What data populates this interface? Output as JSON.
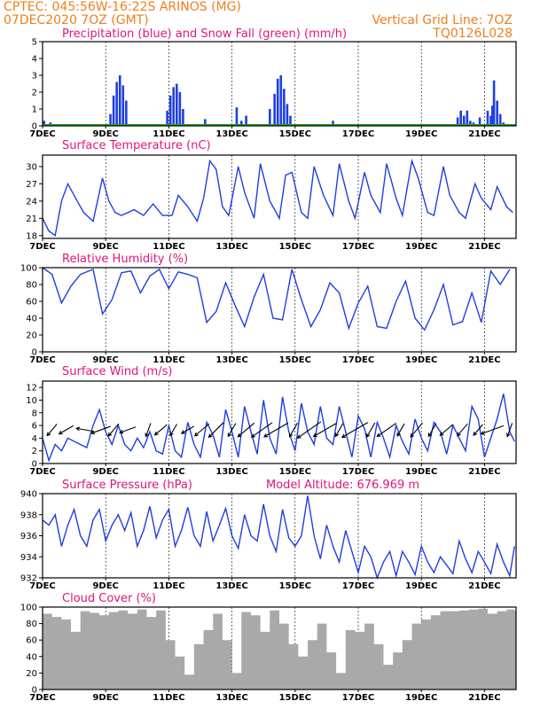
{
  "header": {
    "line1": "CPTEC:   045:56W-16:22S   ARINOS (MG)",
    "line2": "07DEC2020 7OZ (GMT)",
    "grid_note": "Vertical Grid Line: 7OZ",
    "code": "TQ0126L028"
  },
  "x_ticks": [
    "7DEC",
    "9DEC",
    "11DEC",
    "13DEC",
    "15DEC",
    "17DEC",
    "19DEC",
    "21DEC"
  ],
  "colors": {
    "header": "#ef7f1a",
    "title": "#e0157a",
    "line": "#1f3fe0",
    "precip": "#1f3fe0",
    "snow": "#1fa01f",
    "cloud": "#a9a9a9"
  },
  "chart_data": [
    {
      "type": "bar",
      "title": "Precipitation (blue) and Snow Fall (green) (mm/h)",
      "ylim": [
        0,
        5
      ],
      "y_ticks": [
        "0",
        "1",
        "2",
        "3",
        "4",
        "5"
      ],
      "x_days": [
        0.05,
        0.25,
        2.15,
        2.25,
        2.35,
        2.45,
        2.55,
        2.65,
        3.95,
        4.05,
        4.15,
        4.25,
        4.35,
        4.45,
        5.15,
        6.15,
        6.3,
        6.45,
        7.2,
        7.35,
        7.45,
        7.55,
        7.65,
        7.75,
        7.85,
        9.2,
        13.15,
        13.25,
        13.35,
        13.45,
        13.55,
        13.65,
        13.85,
        14.1,
        14.2,
        14.25,
        14.3,
        14.4,
        14.5,
        14.6
      ],
      "values": [
        0.3,
        0.2,
        0.7,
        1.8,
        2.6,
        3.0,
        2.4,
        1.5,
        0.9,
        1.8,
        2.3,
        2.5,
        2.0,
        1.0,
        0.4,
        1.1,
        0.3,
        0.6,
        1.0,
        1.9,
        2.8,
        3.0,
        2.2,
        1.3,
        0.6,
        0.3,
        0.5,
        0.9,
        0.6,
        0.9,
        0.3,
        0.2,
        0.5,
        0.9,
        0.6,
        1.2,
        2.7,
        1.5,
        0.7,
        0.2
      ]
    },
    {
      "type": "line",
      "title": "Surface Temperature (nC)",
      "ylim": [
        17.5,
        32
      ],
      "y_ticks": [
        "18",
        "21",
        "24",
        "27",
        "30"
      ],
      "x_days": [
        0,
        0.2,
        0.4,
        0.6,
        0.8,
        1.0,
        1.3,
        1.6,
        1.9,
        2.1,
        2.3,
        2.5,
        2.9,
        3.2,
        3.5,
        3.8,
        4.1,
        4.3,
        4.6,
        4.9,
        5.1,
        5.3,
        5.5,
        5.7,
        5.9,
        6.2,
        6.4,
        6.7,
        6.9,
        7.2,
        7.5,
        7.7,
        7.9,
        8.2,
        8.4,
        8.6,
        8.9,
        9.2,
        9.4,
        9.7,
        9.9,
        10.2,
        10.4,
        10.7,
        10.9,
        11.2,
        11.4,
        11.7,
        11.9,
        12.2,
        12.4,
        12.7,
        12.9,
        13.2,
        13.4,
        13.7,
        13.9,
        14.2,
        14.4,
        14.7,
        14.9
      ],
      "values": [
        21,
        18.8,
        18,
        24,
        27,
        25,
        22,
        20.5,
        28,
        24,
        22,
        21.5,
        22.5,
        21.5,
        23.5,
        21.5,
        21.5,
        25,
        23,
        20.5,
        24.5,
        31,
        29.5,
        23,
        21.5,
        30,
        25.5,
        21,
        30.5,
        24,
        21,
        28.5,
        29,
        22,
        21,
        30,
        25,
        21.5,
        30.5,
        24,
        21,
        29,
        25,
        22,
        30.5,
        24.5,
        21.5,
        31,
        28,
        22,
        21.5,
        30,
        25,
        22,
        21,
        27,
        24.5,
        22.5,
        26.5,
        23,
        22
      ]
    },
    {
      "type": "line",
      "title": "Relative Humidity (%)",
      "ylim": [
        0,
        100
      ],
      "y_ticks": [
        "0",
        "20",
        "40",
        "60",
        "80",
        "100"
      ],
      "x_days": [
        0,
        0.3,
        0.6,
        0.9,
        1.2,
        1.6,
        1.9,
        2.2,
        2.5,
        2.8,
        3.1,
        3.4,
        3.7,
        4.0,
        4.3,
        4.6,
        4.9,
        5.2,
        5.5,
        5.8,
        6.1,
        6.4,
        6.7,
        7.0,
        7.3,
        7.6,
        7.9,
        8.2,
        8.5,
        8.8,
        9.1,
        9.4,
        9.7,
        10.0,
        10.3,
        10.6,
        10.9,
        11.2,
        11.5,
        11.8,
        12.1,
        12.4,
        12.7,
        13.0,
        13.3,
        13.6,
        13.9,
        14.2,
        14.5,
        14.8
      ],
      "values": [
        100,
        92,
        58,
        78,
        92,
        98,
        45,
        62,
        94,
        96,
        70,
        90,
        98,
        75,
        95,
        92,
        88,
        35,
        48,
        82,
        55,
        30,
        65,
        92,
        40,
        38,
        98,
        62,
        30,
        50,
        82,
        70,
        28,
        58,
        78,
        30,
        28,
        60,
        84,
        40,
        26,
        50,
        80,
        32,
        36,
        70,
        35,
        96,
        80,
        98
      ]
    },
    {
      "type": "line",
      "title": "Surface Wind (m/s)",
      "ylim": [
        0,
        13
      ],
      "y_ticks": [
        "0",
        "2",
        "4",
        "6",
        "8",
        "10",
        "12"
      ],
      "x_days": [
        0,
        0.2,
        0.4,
        0.6,
        0.8,
        1.0,
        1.2,
        1.4,
        1.6,
        1.8,
        2.0,
        2.2,
        2.4,
        2.6,
        2.8,
        3.0,
        3.2,
        3.4,
        3.6,
        3.8,
        4.0,
        4.2,
        4.4,
        4.6,
        4.8,
        5.0,
        5.2,
        5.4,
        5.6,
        5.8,
        6.0,
        6.2,
        6.4,
        6.6,
        6.8,
        7.0,
        7.2,
        7.4,
        7.6,
        7.8,
        8.0,
        8.2,
        8.4,
        8.6,
        8.8,
        9.0,
        9.2,
        9.4,
        9.6,
        9.8,
        10.0,
        10.2,
        10.4,
        10.6,
        10.8,
        11.0,
        11.2,
        11.4,
        11.6,
        11.8,
        12.0,
        12.2,
        12.4,
        12.6,
        12.8,
        13.0,
        13.2,
        13.4,
        13.6,
        13.8,
        14.0,
        14.2,
        14.4,
        14.6,
        14.8,
        14.95
      ],
      "values": [
        4,
        0.5,
        3,
        2,
        4,
        3.5,
        3,
        2.5,
        6,
        8.5,
        5,
        3,
        6,
        3,
        2,
        4,
        2.5,
        5,
        2,
        1.5,
        6,
        2,
        1,
        6.5,
        3,
        1,
        6.5,
        4.5,
        1,
        8.5,
        5,
        1,
        9,
        5,
        1.5,
        10,
        4,
        1.5,
        10.5,
        5,
        2,
        9.5,
        5,
        3,
        9,
        4,
        3,
        9,
        5,
        1,
        7.5,
        5.5,
        1,
        6.5,
        4,
        1,
        6,
        3.5,
        1.5,
        7,
        4,
        2,
        6.5,
        5,
        1.5,
        6,
        4,
        2,
        9,
        7,
        1,
        4,
        7,
        11,
        5,
        3.5
      ]
    },
    {
      "type": "line",
      "title": "Surface Pressure (hPa)",
      "subtitle": "Model Altitude: 676.969 m",
      "ylim": [
        932,
        940
      ],
      "y_ticks": [
        "932",
        "934",
        "936",
        "938",
        "940"
      ],
      "x_days": [
        0,
        0.2,
        0.4,
        0.6,
        0.8,
        1.0,
        1.2,
        1.4,
        1.6,
        1.8,
        2.0,
        2.2,
        2.4,
        2.6,
        2.8,
        3.0,
        3.2,
        3.4,
        3.6,
        3.8,
        4.0,
        4.2,
        4.4,
        4.6,
        4.8,
        5.0,
        5.2,
        5.4,
        5.6,
        5.8,
        6.0,
        6.2,
        6.4,
        6.6,
        6.8,
        7.0,
        7.2,
        7.4,
        7.6,
        7.8,
        8.0,
        8.2,
        8.4,
        8.6,
        8.8,
        9.0,
        9.2,
        9.4,
        9.6,
        9.8,
        10.0,
        10.2,
        10.4,
        10.6,
        10.8,
        11.0,
        11.2,
        11.4,
        11.6,
        11.8,
        12.0,
        12.2,
        12.4,
        12.6,
        12.8,
        13.0,
        13.2,
        13.4,
        13.6,
        13.8,
        14.0,
        14.2,
        14.4,
        14.6,
        14.8,
        14.95
      ],
      "values": [
        937.5,
        937,
        938,
        935,
        937,
        938.5,
        936,
        935,
        937.5,
        938.5,
        935.5,
        937,
        938,
        936.5,
        938.2,
        935,
        936.5,
        938.8,
        935.8,
        937.5,
        938.5,
        935,
        936.5,
        938.7,
        936,
        935,
        938.3,
        935.5,
        937,
        938.6,
        936,
        934.8,
        938,
        936,
        935.5,
        939,
        936,
        934.5,
        938.5,
        935.8,
        935,
        936,
        939.8,
        936,
        933.8,
        937,
        935,
        933.5,
        936.5,
        934.5,
        932.5,
        935,
        934,
        932,
        933.5,
        934.5,
        932.2,
        934.5,
        933.5,
        932.3,
        935,
        933.5,
        932.5,
        934,
        933.2,
        932.4,
        935.5,
        933.8,
        932.5,
        934.5,
        933.5,
        932.4,
        935.2,
        933.5,
        932.2,
        935
      ]
    },
    {
      "type": "area",
      "title": "Cloud Cover (%)",
      "ylim": [
        0,
        100
      ],
      "y_ticks": [
        "0",
        "20",
        "40",
        "60",
        "80",
        "100"
      ],
      "x_days": [
        0,
        0.3,
        0.6,
        0.9,
        1.2,
        1.5,
        1.8,
        2.1,
        2.4,
        2.7,
        3.0,
        3.3,
        3.6,
        3.9,
        4.2,
        4.5,
        4.8,
        5.1,
        5.4,
        5.7,
        6.0,
        6.3,
        6.6,
        6.9,
        7.2,
        7.5,
        7.8,
        8.1,
        8.4,
        8.7,
        9.0,
        9.3,
        9.6,
        9.9,
        10.2,
        10.5,
        10.8,
        11.1,
        11.4,
        11.7,
        12.0,
        12.3,
        12.6,
        12.9,
        13.2,
        13.5,
        13.8,
        14.1,
        14.4,
        14.7,
        14.95
      ],
      "values": [
        92,
        88,
        85,
        70,
        95,
        93,
        90,
        94,
        96,
        92,
        97,
        88,
        96,
        60,
        40,
        18,
        55,
        72,
        92,
        60,
        20,
        94,
        90,
        70,
        96,
        80,
        55,
        40,
        60,
        80,
        45,
        20,
        72,
        70,
        80,
        55,
        30,
        45,
        60,
        80,
        85,
        90,
        95,
        95,
        96,
        97,
        98,
        92,
        95,
        97,
        96
      ]
    }
  ],
  "wind_arrows": {
    "x_days": [
      0.3,
      0.75,
      1.35,
      1.85,
      2.25,
      2.7,
      3.35,
      3.75,
      4.15,
      4.6,
      5.05,
      5.5,
      6.0,
      6.45,
      6.95,
      7.4,
      7.95,
      8.45,
      8.95,
      9.4,
      9.9,
      10.4,
      10.9,
      11.35,
      11.85,
      12.35,
      12.8,
      13.3,
      13.8,
      14.25,
      14.8
    ],
    "speed": [
      2.2,
      2.5,
      2.8,
      3.4,
      2.4,
      2.6,
      2.0,
      2.4,
      1.8,
      2.0,
      3.0,
      3.5,
      2.2,
      3.6,
      4.5,
      5.0,
      2.4,
      5.2,
      4.8,
      2.2,
      5.5,
      2.5,
      4.0,
      2.0,
      3.0,
      2.2,
      2.6,
      2.3,
      2.0,
      4.2,
      2.0
    ],
    "direction_deg": [
      230,
      210,
      170,
      200,
      230,
      200,
      250,
      220,
      240,
      210,
      220,
      225,
      240,
      220,
      215,
      210,
      240,
      215,
      210,
      240,
      210,
      240,
      215,
      240,
      230,
      240,
      220,
      230,
      230,
      200,
      250
    ]
  }
}
